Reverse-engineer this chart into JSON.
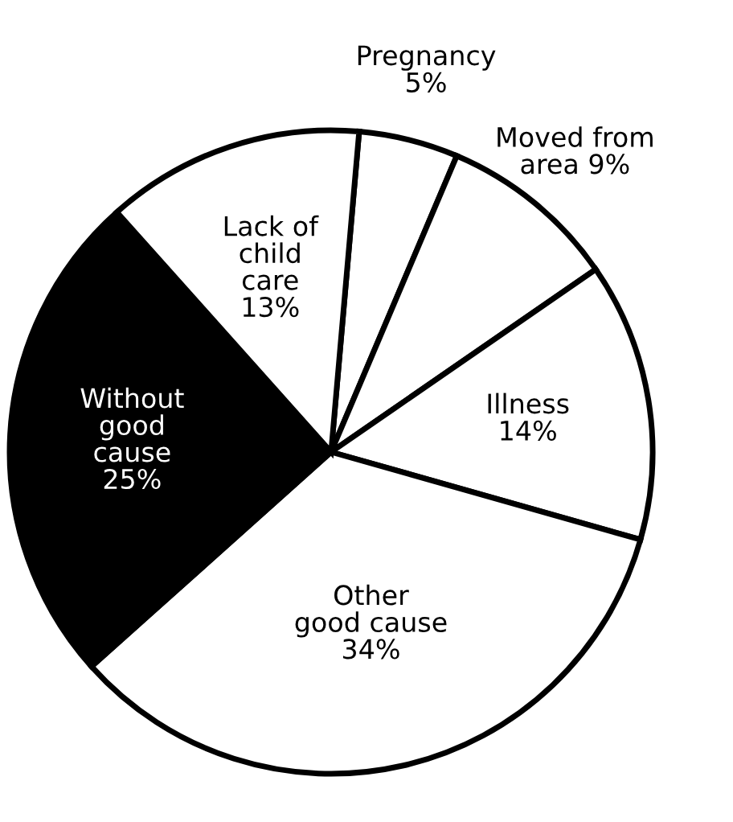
{
  "chart_data": {
    "type": "pie",
    "categories": [
      "Pregnancy",
      "Moved from\narea",
      "Illness",
      "Other\ngood cause",
      "Without\ngood\ncause",
      "Lack of\nchild\ncare"
    ],
    "values": [
      5,
      9,
      14,
      34,
      25,
      13
    ],
    "value_labels": [
      "5%",
      "9%",
      "14%",
      "34%",
      "25%",
      "13%"
    ],
    "colors": [
      "#ffffff",
      "#ffffff",
      "#ffffff",
      "#ffffff",
      "#000000",
      "#ffffff"
    ]
  }
}
